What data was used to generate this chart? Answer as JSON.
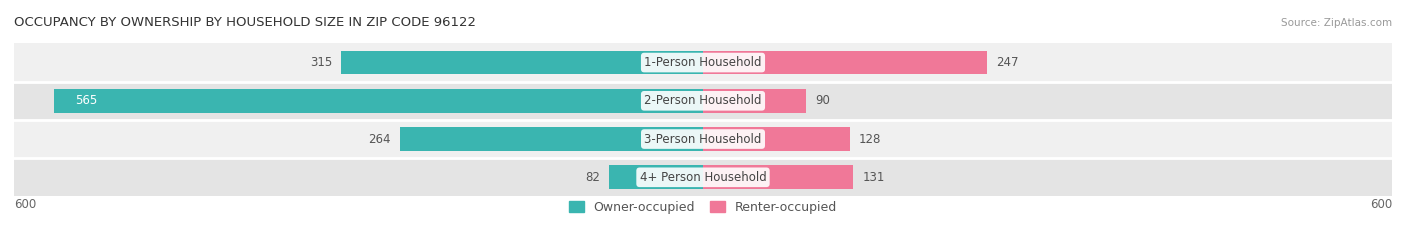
{
  "title": "OCCUPANCY BY OWNERSHIP BY HOUSEHOLD SIZE IN ZIP CODE 96122",
  "source": "Source: ZipAtlas.com",
  "categories": [
    "1-Person Household",
    "2-Person Household",
    "3-Person Household",
    "4+ Person Household"
  ],
  "owner_values": [
    315,
    565,
    264,
    82
  ],
  "renter_values": [
    247,
    90,
    128,
    131
  ],
  "owner_color": "#3ab5b0",
  "renter_color": "#f07898",
  "row_bg_colors": [
    "#f0f0f0",
    "#e4e4e4",
    "#f0f0f0",
    "#e4e4e4"
  ],
  "axis_max": 600,
  "label_fontsize": 8.5,
  "title_fontsize": 9.5,
  "source_fontsize": 7.5,
  "legend_fontsize": 9,
  "bar_height": 0.62,
  "fig_width": 14.06,
  "fig_height": 2.33,
  "dpi": 100
}
